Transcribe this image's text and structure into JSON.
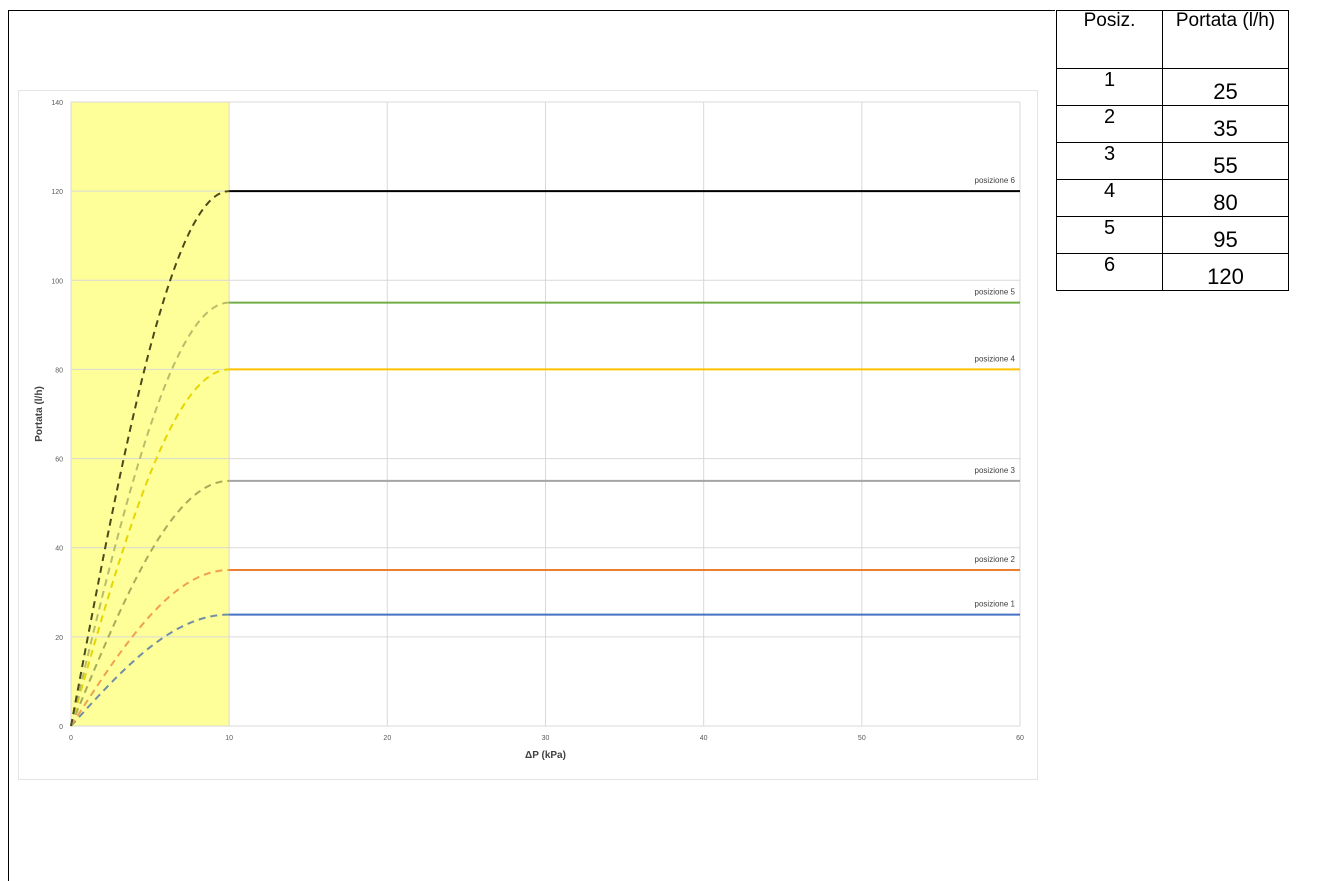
{
  "chart_data": {
    "type": "line",
    "xlabel": "ΔP (kPa)",
    "ylabel": "Portata (l/h)",
    "xlim": [
      0,
      60
    ],
    "ylim": [
      0,
      140
    ],
    "x_ticks": [
      "0",
      "10",
      "20",
      "30",
      "40",
      "50",
      "60"
    ],
    "y_ticks": [
      "0",
      "20",
      "40",
      "60",
      "80",
      "100",
      "120",
      "140"
    ],
    "grid": true,
    "highlight_region": {
      "x_range": [
        0,
        10
      ],
      "color": "#ffff99"
    },
    "series": [
      {
        "name": "posizione 1",
        "value": 25,
        "color": "#4472c4",
        "dashed_color": "#6f8fa5"
      },
      {
        "name": "posizione 2",
        "value": 35,
        "color": "#ed7d31",
        "dashed_color": "#f0a050"
      },
      {
        "name": "posizione 3",
        "value": 55,
        "color": "#a5a5a5",
        "dashed_color": "#a8ab5a"
      },
      {
        "name": "posizione 4",
        "value": 80,
        "color": "#ffc000",
        "dashed_color": "#e8d400"
      },
      {
        "name": "posizione 5",
        "value": 95,
        "color": "#70ad47",
        "dashed_color": "#b8bd6a"
      },
      {
        "name": "posizione 6",
        "value": 120,
        "color": "#000000",
        "dashed_color": "#4a4a1a"
      }
    ]
  },
  "table": {
    "header_pos": "Posiz.",
    "header_flow": "Portata (l/h)",
    "rows": [
      {
        "pos": "1",
        "flow": "25"
      },
      {
        "pos": "2",
        "flow": "35"
      },
      {
        "pos": "3",
        "flow": "55"
      },
      {
        "pos": "4",
        "flow": "80"
      },
      {
        "pos": "5",
        "flow": "95"
      },
      {
        "pos": "6",
        "flow": "120"
      }
    ]
  }
}
